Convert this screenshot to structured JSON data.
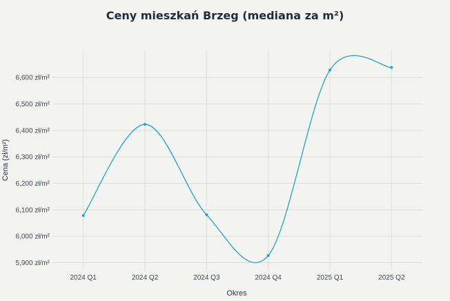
{
  "chart_data": {
    "type": "line",
    "title": "Ceny mieszkań Brzeg (mediana za m²)",
    "xlabel": "Okres",
    "ylabel": "Cena (zł/m²)",
    "categories": [
      "2024 Q1",
      "2024 Q2",
      "2024 Q3",
      "2024 Q4",
      "2025 Q1",
      "2025 Q2"
    ],
    "series": [
      {
        "values": [
          6078,
          6423,
          6081,
          5927,
          6628,
          6638
        ]
      }
    ],
    "yticks": [
      5900,
      6000,
      6100,
      6200,
      6300,
      6400,
      6500,
      6600
    ],
    "ytick_labels": [
      "5,900 zł/m²",
      "6,000 zł/m²",
      "6,100 zł/m²",
      "6,200 zł/m²",
      "6,300 zł/m²",
      "6,400 zł/m²",
      "6,500 zł/m²",
      "6,600 zł/m²"
    ],
    "ylim": [
      5870,
      6705
    ],
    "grid": true,
    "line_color": "#1ba6bd",
    "curve": "smooth"
  }
}
